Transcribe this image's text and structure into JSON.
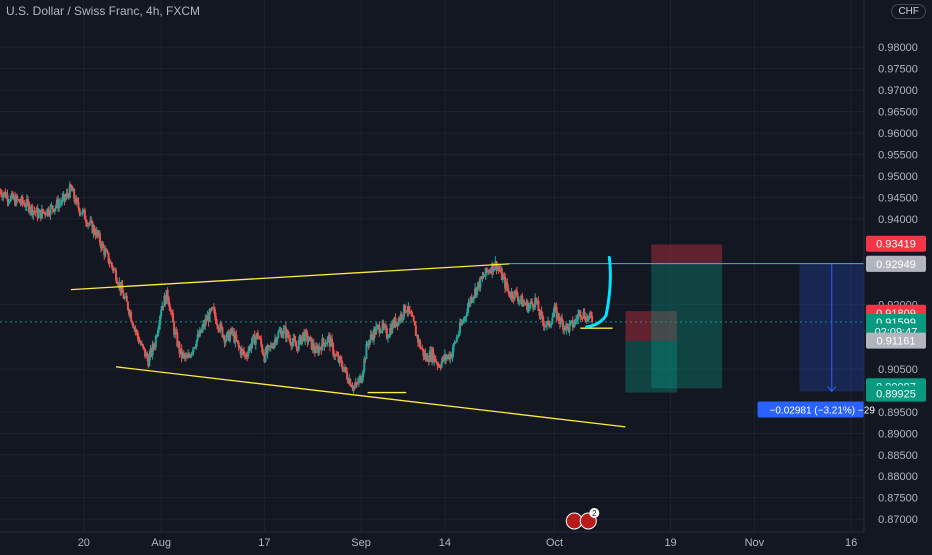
{
  "header": {
    "title": "U.S. Dollar / Swiss Franc, 4h, FXCM",
    "currency": "CHF"
  },
  "chart_data": {
    "type": "candlestick",
    "title": "U.S. Dollar / Swiss Franc, 4h, FXCM",
    "ylim": [
      0.867,
      0.991
    ],
    "y_ticks": [
      {
        "label": "0.98000",
        "value": 0.98
      },
      {
        "label": "0.97500",
        "value": 0.975
      },
      {
        "label": "0.97000",
        "value": 0.97
      },
      {
        "label": "0.96500",
        "value": 0.965
      },
      {
        "label": "0.96000",
        "value": 0.96
      },
      {
        "label": "0.95500",
        "value": 0.955
      },
      {
        "label": "0.95000",
        "value": 0.95
      },
      {
        "label": "0.94500",
        "value": 0.945
      },
      {
        "label": "0.94000",
        "value": 0.94
      },
      {
        "label": "0.92000",
        "value": 0.92
      },
      {
        "label": "0.90500",
        "value": 0.905
      },
      {
        "label": "0.89500",
        "value": 0.895
      },
      {
        "label": "0.89000",
        "value": 0.89
      },
      {
        "label": "0.88500",
        "value": 0.885
      },
      {
        "label": "0.88000",
        "value": 0.88
      },
      {
        "label": "0.87500",
        "value": 0.875
      },
      {
        "label": "0.87000",
        "value": 0.87
      }
    ],
    "x_ticks": [
      {
        "label": "20",
        "day": 0
      },
      {
        "label": "Aug",
        "day": 12
      },
      {
        "label": "17",
        "day": 28
      },
      {
        "label": "Sep",
        "day": 43
      },
      {
        "label": "14",
        "day": 56
      },
      {
        "label": "Oct",
        "day": 73
      },
      {
        "label": "19",
        "day": 91
      },
      {
        "label": "Nov",
        "day": 104
      },
      {
        "label": "16",
        "day": 119
      }
    ],
    "x_range_days": [
      -13,
      121
    ],
    "price_path": [
      [
        -13,
        0.9465
      ],
      [
        -11,
        0.9445
      ],
      [
        -9,
        0.9435
      ],
      [
        -7,
        0.941
      ],
      [
        -5,
        0.9425
      ],
      [
        -3,
        0.9445
      ],
      [
        -2,
        0.947
      ],
      [
        -1,
        0.943
      ],
      [
        0,
        0.941
      ],
      [
        1,
        0.9385
      ],
      [
        2,
        0.9365
      ],
      [
        3,
        0.933
      ],
      [
        4,
        0.93
      ],
      [
        5,
        0.927
      ],
      [
        6,
        0.9225
      ],
      [
        7,
        0.919
      ],
      [
        8,
        0.914
      ],
      [
        9,
        0.91
      ],
      [
        10,
        0.907
      ],
      [
        11,
        0.911
      ],
      [
        12,
        0.9195
      ],
      [
        13,
        0.9225
      ],
      [
        14,
        0.914
      ],
      [
        15,
        0.9085
      ],
      [
        16,
        0.907
      ],
      [
        17,
        0.9105
      ],
      [
        18,
        0.913
      ],
      [
        19,
        0.9165
      ],
      [
        20,
        0.9185
      ],
      [
        21,
        0.915
      ],
      [
        22,
        0.912
      ],
      [
        23,
        0.9135
      ],
      [
        24,
        0.91
      ],
      [
        25,
        0.908
      ],
      [
        26,
        0.911
      ],
      [
        27,
        0.913
      ],
      [
        28,
        0.908
      ],
      [
        29,
        0.91
      ],
      [
        30,
        0.913
      ],
      [
        31,
        0.914
      ],
      [
        32,
        0.912
      ],
      [
        33,
        0.91
      ],
      [
        34,
        0.913
      ],
      [
        35,
        0.9115
      ],
      [
        36,
        0.909
      ],
      [
        37,
        0.911
      ],
      [
        38,
        0.912
      ],
      [
        39,
        0.908
      ],
      [
        40,
        0.906
      ],
      [
        41,
        0.903
      ],
      [
        42,
        0.9005
      ],
      [
        43,
        0.903
      ],
      [
        44,
        0.911
      ],
      [
        45,
        0.9135
      ],
      [
        46,
        0.915
      ],
      [
        47,
        0.913
      ],
      [
        48,
        0.9155
      ],
      [
        49,
        0.917
      ],
      [
        50,
        0.9195
      ],
      [
        51,
        0.916
      ],
      [
        52,
        0.911
      ],
      [
        53,
        0.9075
      ],
      [
        54,
        0.9085
      ],
      [
        55,
        0.906
      ],
      [
        56,
        0.9075
      ],
      [
        57,
        0.9085
      ],
      [
        58,
        0.913
      ],
      [
        59,
        0.917
      ],
      [
        60,
        0.9215
      ],
      [
        61,
        0.924
      ],
      [
        62,
        0.9265
      ],
      [
        63,
        0.9285
      ],
      [
        64,
        0.9295
      ],
      [
        65,
        0.926
      ],
      [
        66,
        0.9225
      ],
      [
        67,
        0.9225
      ],
      [
        68,
        0.9205
      ],
      [
        69,
        0.9195
      ],
      [
        70,
        0.921
      ],
      [
        71,
        0.9165
      ],
      [
        72,
        0.915
      ],
      [
        73,
        0.9185
      ],
      [
        74,
        0.916
      ],
      [
        75,
        0.9145
      ],
      [
        76,
        0.9155
      ],
      [
        77,
        0.9185
      ],
      [
        78,
        0.917
      ],
      [
        79,
        0.9165
      ]
    ],
    "drawings": {
      "upper_line": [
        [
          -2,
          0.9235
        ],
        [
          66,
          0.9295
        ]
      ],
      "lower_line": [
        [
          5,
          0.9055
        ],
        [
          84,
          0.8915
        ]
      ],
      "top_resistance": [
        [
          66,
          0.92956
        ],
        [
          121,
          0.92956
        ]
      ],
      "bottom_support": [
        [
          44,
          0.8995
        ],
        [
          50,
          0.8995
        ]
      ],
      "small_mark": [
        [
          77,
          0.9145
        ],
        [
          82,
          0.9145
        ]
      ],
      "arrow": [
        [
          78,
          0.9148
        ],
        [
          80,
          0.9152
        ],
        [
          81,
          0.9175
        ],
        [
          82,
          0.925
        ],
        [
          81.5,
          0.931
        ]
      ]
    },
    "positions": [
      {
        "name": "long_position",
        "x0": 84,
        "x1": 92,
        "entry": 0.9115,
        "stop": 0.9185,
        "target": 0.8995
      },
      {
        "name": "short_position",
        "x0": 88,
        "x1": 99,
        "entry": 0.9295,
        "stop": 0.934,
        "target": 0.9005
      }
    ],
    "range_measure": {
      "x0": 111,
      "x1": 121,
      "from": 0.92956,
      "to": 0.89975,
      "label": "−0.02981 (−3.21%) −29"
    },
    "price_labels": [
      {
        "text": "0.93419",
        "value": 0.93419,
        "color": "#f23645"
      },
      {
        "text": "0.92956",
        "value": 0.92956,
        "color": "#2962ff"
      },
      {
        "text": "0.92949",
        "value": 0.92949,
        "color": "#b2b5be"
      },
      {
        "text": "0.91809",
        "value": 0.91809,
        "color": "#f23645"
      },
      {
        "text": "0.91599",
        "value": 0.91599,
        "color": "#089981"
      },
      {
        "text": "02:09:47",
        "value": 0.9137,
        "color": "#089981"
      },
      {
        "text": "0.91161",
        "value": 0.91161,
        "color": "#b2b5be"
      },
      {
        "text": "0.90097",
        "value": 0.90097,
        "color": "#089981"
      },
      {
        "text": "0.89925",
        "value": 0.89925,
        "color": "#089981"
      }
    ],
    "events": {
      "count_label": "2"
    }
  }
}
